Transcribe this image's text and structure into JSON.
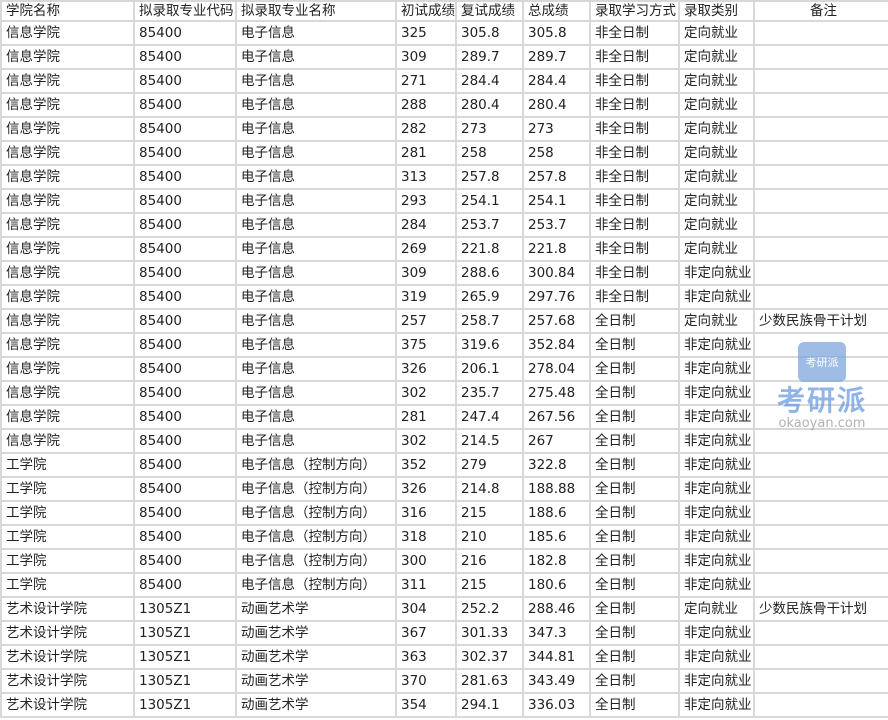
{
  "columns": [
    "学院名称",
    "拟录取专业代码",
    "拟录取专业名称",
    "初试成绩",
    "复试成绩",
    "总成绩",
    "录取学习方式",
    "录取类别",
    "备注"
  ],
  "rows": [
    [
      "信息学院",
      "85400",
      "电子信息",
      "325",
      "305.8",
      "305.8",
      "非全日制",
      "定向就业",
      ""
    ],
    [
      "信息学院",
      "85400",
      "电子信息",
      "309",
      "289.7",
      "289.7",
      "非全日制",
      "定向就业",
      ""
    ],
    [
      "信息学院",
      "85400",
      "电子信息",
      "271",
      "284.4",
      "284.4",
      "非全日制",
      "定向就业",
      ""
    ],
    [
      "信息学院",
      "85400",
      "电子信息",
      "288",
      "280.4",
      "280.4",
      "非全日制",
      "定向就业",
      ""
    ],
    [
      "信息学院",
      "85400",
      "电子信息",
      "282",
      "273",
      "273",
      "非全日制",
      "定向就业",
      ""
    ],
    [
      "信息学院",
      "85400",
      "电子信息",
      "281",
      "258",
      "258",
      "非全日制",
      "定向就业",
      ""
    ],
    [
      "信息学院",
      "85400",
      "电子信息",
      "313",
      "257.8",
      "257.8",
      "非全日制",
      "定向就业",
      ""
    ],
    [
      "信息学院",
      "85400",
      "电子信息",
      "293",
      "254.1",
      "254.1",
      "非全日制",
      "定向就业",
      ""
    ],
    [
      "信息学院",
      "85400",
      "电子信息",
      "284",
      "253.7",
      "253.7",
      "非全日制",
      "定向就业",
      ""
    ],
    [
      "信息学院",
      "85400",
      "电子信息",
      "269",
      "221.8",
      "221.8",
      "非全日制",
      "定向就业",
      ""
    ],
    [
      "信息学院",
      "85400",
      "电子信息",
      "309",
      "288.6",
      "300.84",
      "非全日制",
      "非定向就业",
      ""
    ],
    [
      "信息学院",
      "85400",
      "电子信息",
      "319",
      "265.9",
      "297.76",
      "非全日制",
      "非定向就业",
      ""
    ],
    [
      "信息学院",
      "85400",
      "电子信息",
      "257",
      "258.7",
      "257.68",
      "全日制",
      "定向就业",
      "少数民族骨干计划"
    ],
    [
      "信息学院",
      "85400",
      "电子信息",
      "375",
      "319.6",
      "352.84",
      "全日制",
      "非定向就业",
      ""
    ],
    [
      "信息学院",
      "85400",
      "电子信息",
      "326",
      "206.1",
      "278.04",
      "全日制",
      "非定向就业",
      ""
    ],
    [
      "信息学院",
      "85400",
      "电子信息",
      "302",
      "235.7",
      "275.48",
      "全日制",
      "非定向就业",
      ""
    ],
    [
      "信息学院",
      "85400",
      "电子信息",
      "281",
      "247.4",
      "267.56",
      "全日制",
      "非定向就业",
      ""
    ],
    [
      "信息学院",
      "85400",
      "电子信息",
      "302",
      "214.5",
      "267",
      "全日制",
      "非定向就业",
      ""
    ],
    [
      "工学院",
      "85400",
      "电子信息（控制方向）",
      "352",
      "279",
      "322.8",
      "全日制",
      "非定向就业",
      ""
    ],
    [
      "工学院",
      "85400",
      "电子信息（控制方向）",
      "326",
      "214.8",
      "188.88",
      "全日制",
      "非定向就业",
      ""
    ],
    [
      "工学院",
      "85400",
      "电子信息（控制方向）",
      "316",
      "215",
      "188.6",
      "全日制",
      "非定向就业",
      ""
    ],
    [
      "工学院",
      "85400",
      "电子信息（控制方向）",
      "318",
      "210",
      "185.6",
      "全日制",
      "非定向就业",
      ""
    ],
    [
      "工学院",
      "85400",
      "电子信息（控制方向）",
      "300",
      "216",
      "182.8",
      "全日制",
      "非定向就业",
      ""
    ],
    [
      "工学院",
      "85400",
      "电子信息（控制方向）",
      "311",
      "215",
      "180.6",
      "全日制",
      "非定向就业",
      ""
    ],
    [
      "艺术设计学院",
      "1305Z1",
      "动画艺术学",
      "304",
      "252.2",
      "288.46",
      "全日制",
      "定向就业",
      "少数民族骨干计划"
    ],
    [
      "艺术设计学院",
      "1305Z1",
      "动画艺术学",
      "367",
      "301.33",
      "347.3",
      "全日制",
      "非定向就业",
      ""
    ],
    [
      "艺术设计学院",
      "1305Z1",
      "动画艺术学",
      "363",
      "302.37",
      "344.81",
      "全日制",
      "非定向就业",
      ""
    ],
    [
      "艺术设计学院",
      "1305Z1",
      "动画艺术学",
      "370",
      "281.63",
      "343.49",
      "全日制",
      "非定向就业",
      ""
    ],
    [
      "艺术设计学院",
      "1305Z1",
      "动画艺术学",
      "354",
      "294.1",
      "336.03",
      "全日制",
      "非定向就业",
      ""
    ]
  ],
  "watermark": {
    "logo_text": "考研派",
    "brand": "考研派",
    "url": "okaoyan.com"
  }
}
